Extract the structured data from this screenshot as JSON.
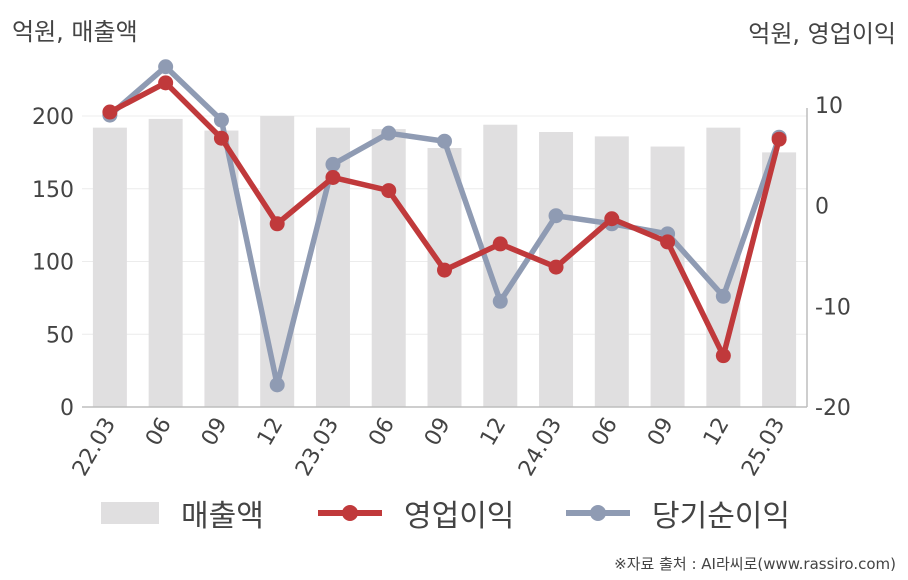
{
  "header": {
    "left_unit": "억원, 매출액",
    "right_unit": "억원, 영업이익"
  },
  "chart_data": {
    "type": "bar",
    "categories": [
      "22.03",
      "06",
      "09",
      "12",
      "23.03",
      "06",
      "09",
      "12",
      "24.03",
      "06",
      "09",
      "12",
      "25.03"
    ],
    "left_axis": {
      "ylim": [
        0,
        200
      ],
      "ticks": [
        0,
        50,
        100,
        150,
        200
      ]
    },
    "right_axis": {
      "ylim": [
        -20,
        10
      ],
      "ticks": [
        -20,
        -10,
        0,
        10
      ]
    },
    "series": [
      {
        "name": "매출액",
        "type": "bar",
        "axis": "left",
        "values": [
          192,
          198,
          190,
          200,
          192,
          191,
          178,
          194,
          189,
          186,
          179,
          192,
          175
        ]
      },
      {
        "name": "영업이익",
        "type": "line",
        "axis": "right",
        "values": [
          9.3,
          12.2,
          6.7,
          -1.8,
          2.8,
          1.5,
          -6.4,
          -3.8,
          -6.1,
          -1.3,
          -3.6,
          -14.9,
          6.6
        ]
      },
      {
        "name": "당기순이익",
        "type": "line",
        "axis": "right",
        "values": [
          9.0,
          13.8,
          8.5,
          -17.8,
          4.1,
          7.2,
          6.4,
          -9.5,
          -1.0,
          -1.8,
          -2.8,
          -9.0,
          6.8
        ]
      }
    ],
    "grid": true,
    "legend_position": "bottom"
  },
  "colors": {
    "bar": "#e0dfe0",
    "operating_profit": "#c0393b",
    "net_income": "#8f9bb3"
  },
  "source": "※자료 출처 : AI라씨로(www.rassiro.com)"
}
